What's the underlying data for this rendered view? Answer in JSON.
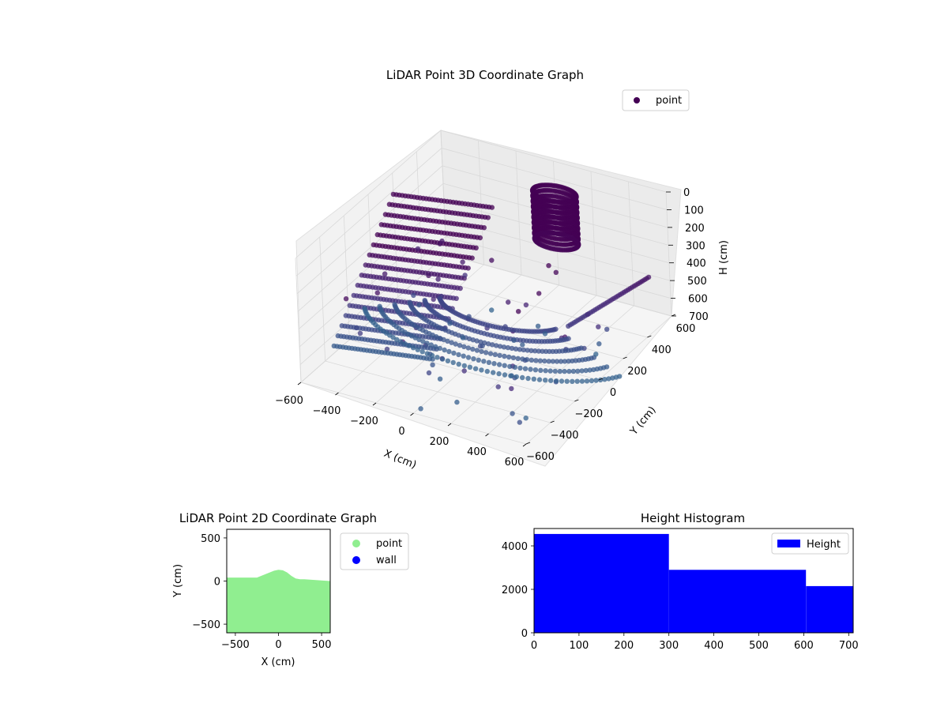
{
  "chart_data": [
    {
      "type": "scatter",
      "projection": "3d",
      "title": "LiDAR Point 3D Coordinate Graph",
      "xlabel": "X (cm)",
      "ylabel": "Y (cm)",
      "zlabel": "H (cm)",
      "xlim": [
        -600,
        600
      ],
      "ylim": [
        -600,
        600
      ],
      "zlim": [
        0,
        700
      ],
      "z_inverted": true,
      "xticks": [
        "−600",
        "−400",
        "−200",
        "0",
        "200",
        "400",
        "600"
      ],
      "yticks": [
        "−600",
        "−400",
        "−200",
        "0",
        "200",
        "400",
        "600"
      ],
      "zticks": [
        "0",
        "100",
        "200",
        "300",
        "400",
        "500",
        "600",
        "700"
      ],
      "grid": true,
      "legend": {
        "position": "top-right",
        "entries": [
          {
            "name": "point",
            "color": "#440154"
          }
        ]
      },
      "colormap": "viridis"
    },
    {
      "type": "scatter",
      "title": "LiDAR Point 2D Coordinate Graph",
      "xlabel": "X (cm)",
      "ylabel": "Y (cm)",
      "xlim": [
        -600,
        600
      ],
      "ylim": [
        -600,
        600
      ],
      "xticks": [
        "−500",
        "0",
        "500"
      ],
      "yticks": [
        "−500",
        "0",
        "500"
      ],
      "series": [
        {
          "name": "point",
          "color": "#90ee90"
        },
        {
          "name": "wall",
          "color": "#0000ff"
        }
      ],
      "point_region_top_edge": {
        "x": [
          -600,
          -350,
          -250,
          -150,
          -50,
          0,
          50,
          100,
          150,
          200,
          250,
          300,
          600
        ],
        "y": [
          40,
          40,
          40,
          80,
          120,
          130,
          125,
          100,
          60,
          30,
          20,
          20,
          0
        ]
      },
      "legend": {
        "position": "outside-right",
        "entries": [
          "point",
          "wall"
        ]
      }
    },
    {
      "type": "bar",
      "title": "Height Histogram",
      "bins": [
        {
          "from": 0,
          "to": 300,
          "value": 4550
        },
        {
          "from": 300,
          "to": 605,
          "value": 2900
        },
        {
          "from": 605,
          "to": 710,
          "value": 2150
        }
      ],
      "xlim": [
        0,
        710
      ],
      "ylim": [
        0,
        4800
      ],
      "xticks": [
        "0",
        "100",
        "200",
        "300",
        "400",
        "500",
        "600",
        "700"
      ],
      "yticks": [
        "0",
        "2000",
        "4000"
      ],
      "color": "#0000ff",
      "legend": {
        "position": "top-right",
        "entries": [
          {
            "name": "Height",
            "color": "#0000ff"
          }
        ]
      }
    }
  ]
}
